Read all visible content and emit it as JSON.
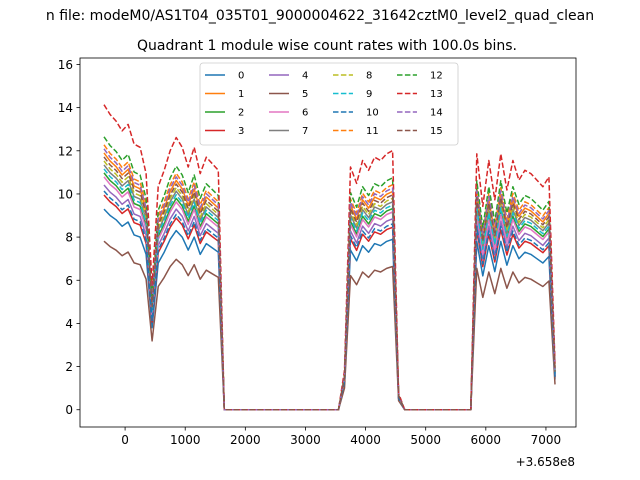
{
  "chart_data": {
    "type": "line",
    "suptitle": "n file: modeM0/AS1T04_035T01_9000004622_31642cztM0_level2_quad_clean",
    "title": "Quadrant 1 module wise count rates with 100.0s bins.",
    "xlabel": "",
    "ylabel": "",
    "x_offset_label": "+3.658e8",
    "xlim": [
      -750,
      7500
    ],
    "ylim": [
      -0.8,
      16.3
    ],
    "xticks": [
      0,
      1000,
      2000,
      3000,
      4000,
      5000,
      6000,
      7000
    ],
    "xtick_labels": [
      "0",
      "1000",
      "2000",
      "3000",
      "4000",
      "5000",
      "6000",
      "7000"
    ],
    "yticks": [
      0,
      2,
      4,
      6,
      8,
      10,
      12,
      14,
      16
    ],
    "ytick_labels": [
      "0",
      "2",
      "4",
      "6",
      "8",
      "10",
      "12",
      "14",
      "16"
    ],
    "legend_position": "top-center",
    "legend_columns": 4,
    "segments": [
      {
        "x": [
          -350,
          -250,
          -150,
          -50,
          50,
          150,
          250,
          350,
          450,
          550,
          650,
          750,
          850,
          950,
          1050,
          1150,
          1250,
          1350,
          1450,
          1550,
          1650,
          1750
        ]
      },
      {
        "x": [
          1750,
          3550
        ]
      },
      {
        "x": [
          3550,
          3650,
          3750,
          3850,
          3950,
          4050,
          4150,
          4250,
          4350,
          4450,
          4550,
          4650
        ]
      },
      {
        "x": [
          4650,
          5750
        ]
      },
      {
        "x": [
          5750,
          5850,
          5950,
          6050,
          6150,
          6250,
          6350,
          6450,
          6550,
          6650,
          6750,
          6850,
          6950,
          7050,
          7150
        ]
      }
    ],
    "series": [
      {
        "name": "0",
        "color": "#1f77b4",
        "dash": "solid",
        "offset": 0.0,
        "scale": 1.0
      },
      {
        "name": "1",
        "color": "#ff7f0e",
        "dash": "solid",
        "offset": 0.0,
        "scale": 1.28
      },
      {
        "name": "2",
        "color": "#2ca02c",
        "dash": "solid",
        "offset": 0.0,
        "scale": 1.18
      },
      {
        "name": "3",
        "color": "#d62728",
        "dash": "solid",
        "offset": 0.0,
        "scale": 1.07
      },
      {
        "name": "4",
        "color": "#9467bd",
        "dash": "solid",
        "offset": 0.0,
        "scale": 1.12
      },
      {
        "name": "5",
        "color": "#8c564b",
        "dash": "solid",
        "offset": 0.0,
        "scale": 0.84
      },
      {
        "name": "6",
        "color": "#e377c2",
        "dash": "solid",
        "offset": 0.0,
        "scale": 1.16
      },
      {
        "name": "7",
        "color": "#7f7f7f",
        "dash": "solid",
        "offset": 0.0,
        "scale": 1.22
      },
      {
        "name": "8",
        "color": "#bcbd22",
        "dash": "dashed",
        "offset": 0.0,
        "scale": 1.24
      },
      {
        "name": "9",
        "color": "#17becf",
        "dash": "dashed",
        "offset": 0.0,
        "scale": 1.2
      },
      {
        "name": "10",
        "color": "#1f77b4",
        "dash": "dashed",
        "offset": 0.0,
        "scale": 1.09
      },
      {
        "name": "11",
        "color": "#ff7f0e",
        "dash": "dashed",
        "offset": 0.0,
        "scale": 1.32
      },
      {
        "name": "12",
        "color": "#2ca02c",
        "dash": "dashed",
        "offset": 0.0,
        "scale": 1.36
      },
      {
        "name": "13",
        "color": "#d62728",
        "dash": "dashed",
        "offset": 0.0,
        "scale": 1.52
      },
      {
        "name": "14",
        "color": "#9467bd",
        "dash": "dashed",
        "offset": 0.0,
        "scale": 1.3
      },
      {
        "name": "15",
        "color": "#8c564b",
        "dash": "dashed",
        "offset": 0.0,
        "scale": 1.26
      }
    ],
    "base_profile": [
      [
        9.3,
        9.0,
        8.8,
        8.5,
        8.7,
        8.1,
        8.0,
        7.2,
        3.8,
        6.8,
        7.3,
        7.9,
        8.3,
        8.0,
        7.4,
        8.0,
        7.2,
        7.7,
        7.5,
        7.3,
        0.0,
        0.0
      ],
      [
        0.0,
        0.0
      ],
      [
        0.0,
        1.2,
        7.4,
        6.9,
        7.6,
        7.3,
        7.7,
        7.6,
        7.8,
        7.9,
        0.5,
        0.0
      ],
      [
        0.0,
        0.0
      ],
      [
        0.0,
        7.8,
        6.2,
        7.6,
        6.4,
        7.8,
        6.7,
        7.6,
        7.0,
        7.3,
        7.2,
        7.0,
        6.8,
        7.1,
        1.4
      ]
    ]
  }
}
